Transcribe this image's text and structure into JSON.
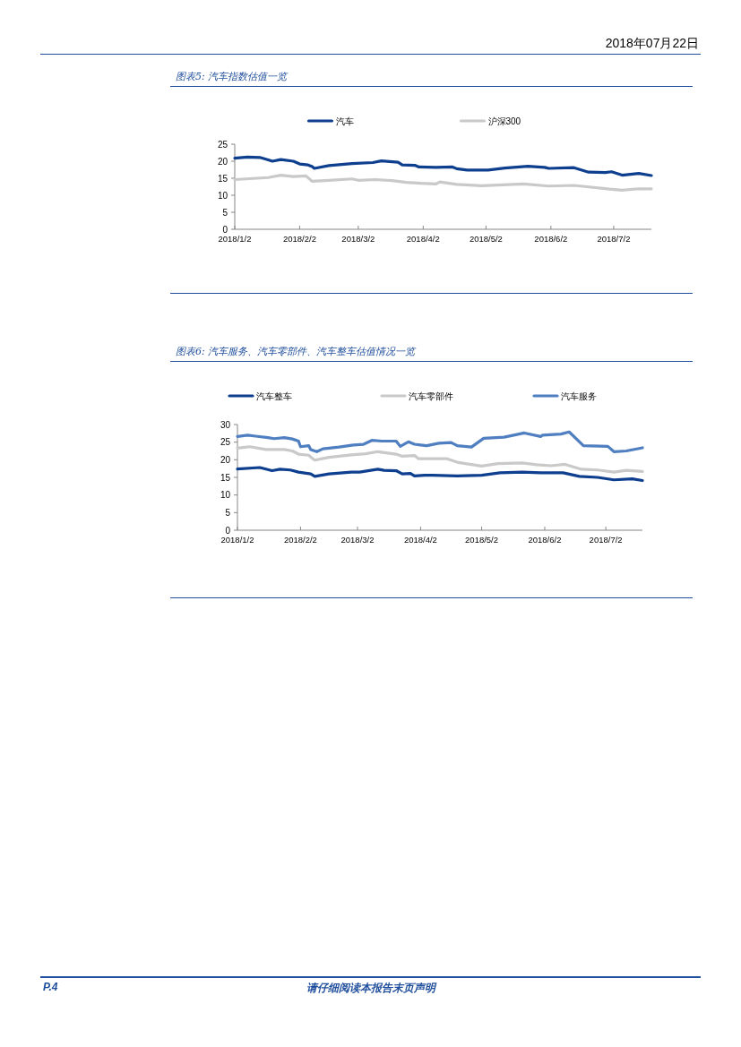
{
  "chart_data": [
    {
      "type": "line",
      "title": "图表5: 汽车指数估值一览",
      "legend": "top",
      "annotations": [
        "2018年07月22日"
      ],
      "xlim": [
        "2018-01-02",
        "2018-07-20"
      ],
      "xticks": [
        {
          "value": "2018-01-02",
          "label": "2018/1/2"
        },
        {
          "value": "2018-02-02",
          "label": "2018/2/2"
        },
        {
          "value": "2018-03-02",
          "label": "2018/3/2"
        },
        {
          "value": "2018-04-02",
          "label": "2018/4/2"
        },
        {
          "value": "2018-05-02",
          "label": "2018/5/2"
        },
        {
          "value": "2018-06-02",
          "label": "2018/6/2"
        },
        {
          "value": "2018-07-02",
          "label": "2018/7/2"
        }
      ],
      "ylim": [
        0,
        25
      ],
      "yticks": [
        0,
        5,
        10,
        15,
        20,
        25
      ],
      "series": [
        {
          "name": "汽车",
          "color": "#0e3f8f",
          "x": [
            "2018-01-02",
            "2018-01-08",
            "2018-01-14",
            "2018-01-18",
            "2018-01-20",
            "2018-01-24",
            "2018-01-30",
            "2018-02-02",
            "2018-02-06",
            "2018-02-08",
            "2018-02-09",
            "2018-02-16",
            "2018-02-27",
            "2018-03-09",
            "2018-03-13",
            "2018-03-21",
            "2018-03-23",
            "2018-03-29",
            "2018-03-31",
            "2018-04-08",
            "2018-04-16",
            "2018-04-18",
            "2018-04-23",
            "2018-05-03",
            "2018-05-11",
            "2018-05-22",
            "2018-05-30",
            "2018-06-01",
            "2018-06-13",
            "2018-06-20",
            "2018-06-28",
            "2018-07-01",
            "2018-07-06",
            "2018-07-14",
            "2018-07-20"
          ],
          "values": [
            20.9,
            21.2,
            21.1,
            20.4,
            20.0,
            20.5,
            20.0,
            19.2,
            18.9,
            18.4,
            17.9,
            18.7,
            19.3,
            19.6,
            20.1,
            19.7,
            18.9,
            18.8,
            18.3,
            18.2,
            18.3,
            17.8,
            17.4,
            17.4,
            18.0,
            18.5,
            18.2,
            17.9,
            18.1,
            16.8,
            16.7,
            16.9,
            15.9,
            16.4,
            15.8
          ]
        },
        {
          "name": "沪深300",
          "color": "#c9c9c9",
          "x": [
            "2018-01-02",
            "2018-01-18",
            "2018-01-24",
            "2018-01-30",
            "2018-02-05",
            "2018-02-08",
            "2018-02-16",
            "2018-02-27",
            "2018-03-02",
            "2018-03-10",
            "2018-03-18",
            "2018-03-25",
            "2018-04-01",
            "2018-04-08",
            "2018-04-10",
            "2018-04-18",
            "2018-04-30",
            "2018-05-20",
            "2018-06-01",
            "2018-06-13",
            "2018-06-30",
            "2018-07-06",
            "2018-07-14",
            "2018-07-20"
          ],
          "values": [
            14.6,
            15.2,
            15.9,
            15.5,
            15.7,
            14.1,
            14.4,
            14.8,
            14.4,
            14.6,
            14.3,
            13.8,
            13.5,
            13.3,
            13.9,
            13.2,
            12.8,
            13.3,
            12.7,
            12.9,
            11.8,
            11.5,
            11.9,
            11.9
          ]
        }
      ]
    },
    {
      "type": "line",
      "title": "图表6: 汽车服务、汽车零部件、汽车整车估值情况一览",
      "legend": "top",
      "annotations": [
        "P.4",
        "请仔细阅读本报告末页声明"
      ],
      "xlim": [
        "2018-01-02",
        "2018-07-20"
      ],
      "xticks": [
        {
          "value": "2018-01-02",
          "label": "2018/1/2"
        },
        {
          "value": "2018-02-02",
          "label": "2018/2/2"
        },
        {
          "value": "2018-03-02",
          "label": "2018/3/2"
        },
        {
          "value": "2018-04-02",
          "label": "2018/4/2"
        },
        {
          "value": "2018-05-02",
          "label": "2018/5/2"
        },
        {
          "value": "2018-06-02",
          "label": "2018/6/2"
        },
        {
          "value": "2018-07-02",
          "label": "2018/7/2"
        }
      ],
      "ylim": [
        0,
        30
      ],
      "yticks": [
        0,
        5,
        10,
        15,
        20,
        25,
        30
      ],
      "series": [
        {
          "name": "汽车整车",
          "color": "#0e3f8f",
          "x": [
            "2018-01-02",
            "2018-01-13",
            "2018-01-19",
            "2018-01-23",
            "2018-01-28",
            "2018-02-01",
            "2018-02-07",
            "2018-02-09",
            "2018-02-16",
            "2018-02-27",
            "2018-03-03",
            "2018-03-12",
            "2018-03-15",
            "2018-03-21",
            "2018-03-24",
            "2018-03-28",
            "2018-03-30",
            "2018-04-04",
            "2018-04-08",
            "2018-04-20",
            "2018-05-02",
            "2018-05-11",
            "2018-05-22",
            "2018-05-31",
            "2018-06-11",
            "2018-06-19",
            "2018-06-28",
            "2018-07-06",
            "2018-07-15",
            "2018-07-20"
          ],
          "values": [
            17.4,
            17.8,
            16.9,
            17.3,
            17.1,
            16.5,
            16.0,
            15.3,
            16.0,
            16.5,
            16.5,
            17.3,
            17.0,
            16.9,
            16.0,
            16.1,
            15.4,
            15.6,
            15.6,
            15.4,
            15.6,
            16.3,
            16.5,
            16.3,
            16.3,
            15.3,
            15.0,
            14.3,
            14.6,
            14.1
          ]
        },
        {
          "name": "汽车零部件",
          "color": "#c9c9c9",
          "x": [
            "2018-01-02",
            "2018-01-08",
            "2018-01-16",
            "2018-01-25",
            "2018-01-29",
            "2018-02-01",
            "2018-02-06",
            "2018-02-08",
            "2018-02-09",
            "2018-02-16",
            "2018-02-27",
            "2018-03-06",
            "2018-03-12",
            "2018-03-21",
            "2018-03-24",
            "2018-03-30",
            "2018-04-01",
            "2018-04-05",
            "2018-04-15",
            "2018-04-20",
            "2018-04-24",
            "2018-05-02",
            "2018-05-10",
            "2018-05-22",
            "2018-05-29",
            "2018-06-05",
            "2018-06-12",
            "2018-06-20",
            "2018-06-28",
            "2018-07-06",
            "2018-07-12",
            "2018-07-20"
          ],
          "values": [
            23.3,
            23.7,
            22.9,
            22.9,
            22.5,
            21.6,
            21.3,
            20.3,
            19.9,
            20.7,
            21.4,
            21.7,
            22.3,
            21.6,
            21.0,
            21.2,
            20.3,
            20.3,
            20.3,
            19.3,
            18.9,
            18.2,
            18.9,
            19.1,
            18.6,
            18.3,
            18.7,
            17.3,
            17.1,
            16.5,
            17.0,
            16.7
          ]
        },
        {
          "name": "汽车服务",
          "color": "#4f7fc0",
          "x": [
            "2018-01-02",
            "2018-01-07",
            "2018-01-11",
            "2018-01-17",
            "2018-01-20",
            "2018-01-25",
            "2018-01-29",
            "2018-02-01",
            "2018-02-02",
            "2018-02-06",
            "2018-02-07",
            "2018-02-10",
            "2018-02-13",
            "2018-02-21",
            "2018-02-28",
            "2018-03-05",
            "2018-03-09",
            "2018-03-14",
            "2018-03-21",
            "2018-03-23",
            "2018-03-27",
            "2018-03-30",
            "2018-04-02",
            "2018-04-05",
            "2018-04-11",
            "2018-04-17",
            "2018-04-20",
            "2018-04-27",
            "2018-05-03",
            "2018-05-13",
            "2018-05-23",
            "2018-05-31",
            "2018-06-01",
            "2018-06-10",
            "2018-06-14",
            "2018-06-21",
            "2018-07-03",
            "2018-07-06",
            "2018-07-12",
            "2018-07-20"
          ],
          "values": [
            26.6,
            27.0,
            26.7,
            26.3,
            26.0,
            26.3,
            25.9,
            25.3,
            23.7,
            24.0,
            22.9,
            22.3,
            23.1,
            23.6,
            24.2,
            24.4,
            25.5,
            25.3,
            25.3,
            23.8,
            25.1,
            24.4,
            24.2,
            24.0,
            24.7,
            24.9,
            24.0,
            23.6,
            26.1,
            26.4,
            27.6,
            26.6,
            27.0,
            27.3,
            27.9,
            24.0,
            23.8,
            22.3,
            22.5,
            23.4
          ]
        }
      ]
    }
  ]
}
